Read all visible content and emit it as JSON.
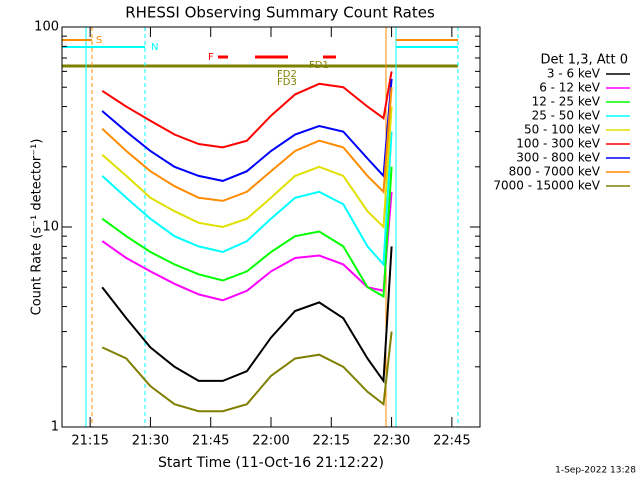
{
  "chart_data": {
    "type": "line",
    "title": "RHESSI Observing Summary Count Rates",
    "y_label": "Count Rate (s⁻¹ detector⁻¹)",
    "x_label": "Start Time (11-Oct-16 21:12:22)",
    "footer": "1-Sep-2022 13:28",
    "legend_title": "Det 1,3, Att 0",
    "annotations": [
      "S",
      "N",
      "F",
      "FD1",
      "FD2",
      "FD3"
    ],
    "log_y": true,
    "xlim": [
      "21:08",
      "22:52"
    ],
    "xticks": [
      "21:15",
      "21:30",
      "21:45",
      "22:00",
      "22:15",
      "22:30",
      "22:45"
    ],
    "ylim": [
      1,
      100
    ],
    "yticks": [
      1,
      10,
      100
    ],
    "x": [
      "21:18",
      "21:24",
      "21:30",
      "21:36",
      "21:42",
      "21:48",
      "21:54",
      "22:00",
      "22:06",
      "22:12",
      "22:18",
      "22:24",
      "22:28",
      "22:30"
    ],
    "series": [
      {
        "name": "3 - 6 keV",
        "color": "#000000",
        "values": [
          5,
          3.5,
          2.5,
          2,
          1.7,
          1.7,
          1.9,
          2.8,
          3.8,
          4.2,
          3.5,
          2.2,
          1.7,
          8
        ]
      },
      {
        "name": "6 - 12 keV",
        "color": "#ff00ff",
        "values": [
          8.5,
          7,
          6,
          5.2,
          4.6,
          4.3,
          4.8,
          6,
          7,
          7.2,
          6.5,
          5,
          4.8,
          15
        ]
      },
      {
        "name": "12 - 25 keV",
        "color": "#00ff00",
        "values": [
          11,
          9,
          7.5,
          6.5,
          5.8,
          5.4,
          6,
          7.5,
          9,
          9.5,
          8,
          5,
          4.5,
          20
        ]
      },
      {
        "name": "25 - 50 keV",
        "color": "#00ffff",
        "values": [
          18,
          14,
          11,
          9,
          8,
          7.5,
          8.5,
          11,
          14,
          15,
          13,
          8,
          6.5,
          30
        ]
      },
      {
        "name": "50 - 100 keV",
        "color": "#e0e000",
        "values": [
          23,
          18,
          14,
          12,
          10.5,
          10,
          11,
          14,
          18,
          20,
          18,
          12,
          10,
          40
        ]
      },
      {
        "name": "100 - 300 keV",
        "color": "#ff0000",
        "values": [
          48,
          40,
          34,
          29,
          26,
          25,
          27,
          36,
          46,
          52,
          50,
          40,
          35,
          60
        ]
      },
      {
        "name": "300 - 800 keV",
        "color": "#0000ff",
        "values": [
          38,
          30,
          24,
          20,
          18,
          17,
          19,
          24,
          29,
          32,
          30,
          22,
          18,
          55
        ]
      },
      {
        "name": "800 - 7000 keV",
        "color": "#ff8c00",
        "values": [
          31,
          24,
          19,
          16,
          14,
          13.5,
          15,
          19,
          24,
          27,
          25,
          18,
          15,
          50
        ]
      },
      {
        "name": "7000 - 15000 keV",
        "color": "#808000",
        "values": [
          2.5,
          2.2,
          1.6,
          1.3,
          1.2,
          1.2,
          1.3,
          1.8,
          2.2,
          2.3,
          2,
          1.5,
          1.3,
          3
        ]
      }
    ]
  }
}
